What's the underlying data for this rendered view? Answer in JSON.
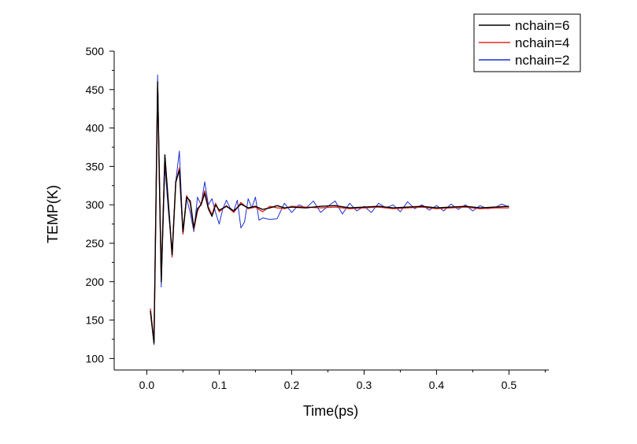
{
  "chart_data": {
    "type": "line",
    "title": "",
    "xlabel": "Time(ps)",
    "ylabel": "TEMP(K)",
    "xlim": [
      -0.045,
      0.555
    ],
    "ylim": [
      85,
      500
    ],
    "x_ticks": [
      0.0,
      0.1,
      0.2,
      0.3,
      0.4,
      0.5
    ],
    "x_tick_labels": [
      "0.0",
      "0.1",
      "0.2",
      "0.3",
      "0.4",
      "0.5"
    ],
    "y_ticks": [
      100,
      150,
      200,
      250,
      300,
      350,
      400,
      450,
      500
    ],
    "y_tick_labels": [
      "100",
      "150",
      "200",
      "250",
      "300",
      "350",
      "400",
      "450",
      "500"
    ],
    "grid": false,
    "legend_position": "top-right",
    "series": [
      {
        "name": "nchain=6",
        "color": "#000000",
        "x": [
          0.005,
          0.01,
          0.015,
          0.02,
          0.025,
          0.03,
          0.035,
          0.04,
          0.045,
          0.05,
          0.055,
          0.06,
          0.065,
          0.07,
          0.075,
          0.08,
          0.085,
          0.09,
          0.095,
          0.1,
          0.11,
          0.12,
          0.13,
          0.14,
          0.15,
          0.16,
          0.17,
          0.18,
          0.19,
          0.2,
          0.22,
          0.24,
          0.26,
          0.28,
          0.3,
          0.32,
          0.34,
          0.36,
          0.38,
          0.4,
          0.42,
          0.44,
          0.46,
          0.48,
          0.5
        ],
        "y": [
          162,
          120,
          460,
          200,
          365,
          300,
          235,
          330,
          345,
          265,
          310,
          305,
          270,
          295,
          300,
          315,
          295,
          285,
          300,
          293,
          298,
          292,
          301,
          296,
          298,
          294,
          296,
          299,
          296,
          297,
          296,
          298,
          299,
          296,
          297,
          298,
          296,
          297,
          298,
          296,
          297,
          298,
          296,
          297,
          298
        ]
      },
      {
        "name": "nchain=4",
        "color": "#e8281e",
        "x": [
          0.005,
          0.01,
          0.015,
          0.02,
          0.025,
          0.03,
          0.035,
          0.04,
          0.045,
          0.05,
          0.055,
          0.06,
          0.065,
          0.07,
          0.075,
          0.08,
          0.085,
          0.09,
          0.095,
          0.1,
          0.11,
          0.12,
          0.13,
          0.14,
          0.15,
          0.16,
          0.17,
          0.18,
          0.19,
          0.2,
          0.22,
          0.24,
          0.26,
          0.28,
          0.3,
          0.32,
          0.34,
          0.36,
          0.38,
          0.4,
          0.42,
          0.44,
          0.46,
          0.48,
          0.5
        ],
        "y": [
          165,
          122,
          455,
          205,
          362,
          300,
          232,
          328,
          348,
          262,
          312,
          302,
          268,
          292,
          302,
          318,
          297,
          287,
          302,
          291,
          299,
          290,
          303,
          295,
          297,
          291,
          298,
          296,
          295,
          298,
          297,
          296,
          297,
          295,
          296,
          297,
          295,
          296,
          297,
          295,
          296,
          297,
          295,
          296,
          296
        ]
      },
      {
        "name": "nchain=2",
        "color": "#1c2fd0",
        "x": [
          0.005,
          0.01,
          0.015,
          0.02,
          0.025,
          0.03,
          0.035,
          0.04,
          0.045,
          0.05,
          0.055,
          0.06,
          0.065,
          0.07,
          0.075,
          0.08,
          0.085,
          0.09,
          0.095,
          0.1,
          0.105,
          0.11,
          0.115,
          0.12,
          0.125,
          0.13,
          0.135,
          0.14,
          0.145,
          0.15,
          0.155,
          0.16,
          0.17,
          0.18,
          0.19,
          0.2,
          0.21,
          0.22,
          0.23,
          0.24,
          0.25,
          0.26,
          0.27,
          0.28,
          0.29,
          0.3,
          0.31,
          0.32,
          0.33,
          0.34,
          0.35,
          0.36,
          0.37,
          0.38,
          0.39,
          0.4,
          0.41,
          0.42,
          0.43,
          0.44,
          0.45,
          0.46,
          0.47,
          0.48,
          0.49,
          0.5
        ],
        "y": [
          160,
          118,
          469,
          193,
          350,
          290,
          238,
          330,
          370,
          262,
          308,
          290,
          265,
          310,
          300,
          330,
          300,
          308,
          290,
          275,
          295,
          306,
          296,
          292,
          306,
          270,
          278,
          308,
          296,
          310,
          280,
          283,
          281,
          282,
          302,
          290,
          300,
          296,
          305,
          290,
          298,
          305,
          288,
          302,
          292,
          298,
          290,
          302,
          296,
          300,
          291,
          304,
          295,
          300,
          293,
          299,
          292,
          301,
          294,
          300,
          292,
          299,
          295,
          296,
          301,
          297
        ]
      }
    ]
  }
}
